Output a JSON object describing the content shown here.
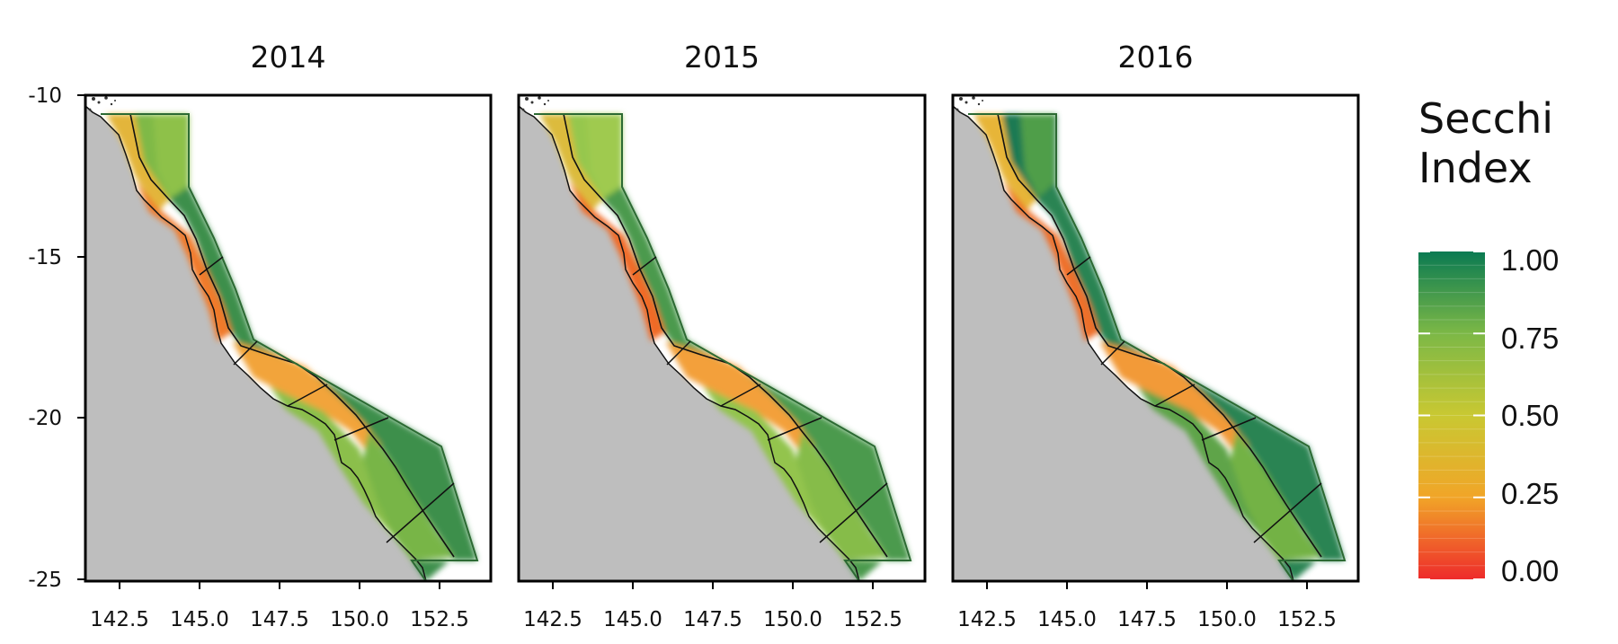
{
  "figure": {
    "panels": [
      {
        "year_label": "2014",
        "zone_colors": {
          "north": "#e3b53a",
          "north_outer": "#7fb947",
          "north_shelf": "#8ec14a",
          "inner": "#f07a2a",
          "mid": "#f2a43a",
          "central": "#78b546",
          "south": "#8bbf4b",
          "offshore": "#3d8f4c"
        }
      },
      {
        "year_label": "2015",
        "zone_colors": {
          "north": "#dcbb3c",
          "north_outer": "#96c74d",
          "north_shelf": "#9fca50",
          "inner": "#f06a28",
          "mid": "#f3a03a",
          "central": "#86bc48",
          "south": "#93c44d",
          "offshore": "#4c9a4e"
        }
      },
      {
        "year_label": "2016",
        "zone_colors": {
          "north": "#e7b538",
          "north_outer": "#1d7a52",
          "north_shelf": "#4f9e48",
          "inner": "#ee6f2a",
          "mid": "#f29a38",
          "central": "#73b244",
          "south": "#5fa449",
          "offshore": "#2b8452"
        }
      }
    ],
    "x_axis": {
      "ticks": [
        "142.5",
        "145.0",
        "147.5",
        "150.0",
        "152.5"
      ],
      "values": [
        142.5,
        145.0,
        147.5,
        150.0,
        152.5
      ],
      "range": [
        141.9,
        154.6
      ]
    },
    "y_axis": {
      "ticks": [
        "-10",
        "-15",
        "-20",
        "-25"
      ],
      "values": [
        -10,
        -15,
        -20,
        -25
      ],
      "range": [
        -25.2,
        -10.0
      ]
    },
    "land_color": "#bebebe",
    "legend": {
      "title_line1": "Secchi",
      "title_line2": "Index",
      "labels": [
        "1.00",
        "0.75",
        "0.50",
        "0.25",
        "0.00"
      ],
      "values": [
        1.0,
        0.75,
        0.5,
        0.25,
        0.0
      ],
      "colors": [
        "#ee2b2b",
        "#f1a528",
        "#c9c832",
        "#7cb846",
        "#0a7a52"
      ]
    }
  }
}
